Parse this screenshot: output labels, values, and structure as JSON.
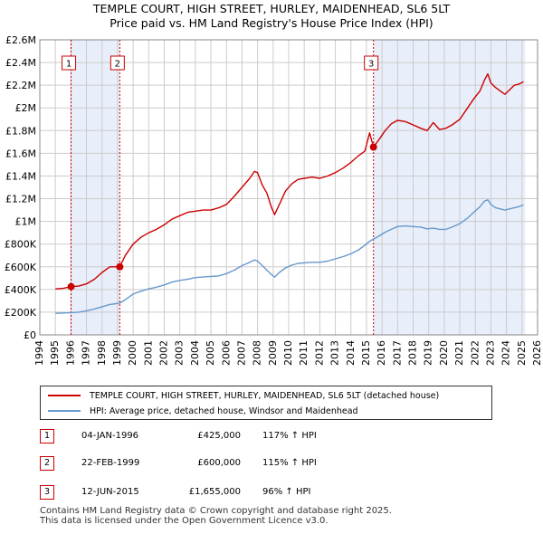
{
  "title_line1": "TEMPLE COURT, HIGH STREET, HURLEY, MAIDENHEAD, SL6 5LT",
  "title_line2": "Price paid vs. HM Land Registry's House Price Index (HPI)",
  "colors": {
    "property": "#cc0000",
    "hpi": "#6699cc",
    "shade": "#e8eefa",
    "grid": "#cccccc",
    "vline": "#cc0000"
  },
  "legend": {
    "property_label": "TEMPLE COURT, HIGH STREET, HURLEY, MAIDENHEAD, SL6 5LT (detached house)",
    "hpi_label": "HPI: Average price, detached house, Windsor and Maidenhead"
  },
  "sales": [
    {
      "num": "1",
      "date": "04-JAN-1996",
      "price": "£425,000",
      "hpi": "117% ↑ HPI"
    },
    {
      "num": "2",
      "date": "22-FEB-1999",
      "price": "£600,000",
      "hpi": "115% ↑ HPI"
    },
    {
      "num": "3",
      "date": "12-JUN-2015",
      "price": "£1,655,000",
      "hpi": "96% ↑ HPI"
    }
  ],
  "footer_line1": "Contains HM Land Registry data © Crown copyright and database right 2025.",
  "footer_line2": "This data is licensed under the Open Government Licence v3.0.",
  "chart_data": {
    "type": "line",
    "title": "TEMPLE COURT, HIGH STREET, HURLEY, MAIDENHEAD, SL6 5LT - Price paid vs. HM Land Registry's House Price Index (HPI)",
    "xlabel": "",
    "ylabel": "",
    "xlim": [
      1994,
      2026
    ],
    "ylim": [
      0,
      2600000
    ],
    "x_ticks": [
      1994,
      1995,
      1996,
      1997,
      1998,
      1999,
      2000,
      2001,
      2002,
      2003,
      2004,
      2005,
      2006,
      2007,
      2008,
      2009,
      2010,
      2011,
      2012,
      2013,
      2014,
      2015,
      2016,
      2017,
      2018,
      2019,
      2020,
      2021,
      2022,
      2023,
      2024,
      2025,
      2026
    ],
    "y_ticks": [
      {
        "value": 0,
        "label": "£0"
      },
      {
        "value": 200000,
        "label": "£200K"
      },
      {
        "value": 400000,
        "label": "£400K"
      },
      {
        "value": 600000,
        "label": "£600K"
      },
      {
        "value": 800000,
        "label": "£800K"
      },
      {
        "value": 1000000,
        "label": "£1M"
      },
      {
        "value": 1200000,
        "label": "£1.2M"
      },
      {
        "value": 1400000,
        "label": "£1.4M"
      },
      {
        "value": 1600000,
        "label": "£1.6M"
      },
      {
        "value": 1800000,
        "label": "£1.8M"
      },
      {
        "value": 2000000,
        "label": "£2M"
      },
      {
        "value": 2200000,
        "label": "£2.2M"
      },
      {
        "value": 2400000,
        "label": "£2.4M"
      },
      {
        "value": 2600000,
        "label": "£2.6M"
      }
    ],
    "shaded_ranges": [
      [
        1996.01,
        1999.14
      ],
      [
        2015.45,
        2025.2
      ]
    ],
    "sale_markers": [
      {
        "label": "1",
        "x": 1996.01,
        "y": 425000
      },
      {
        "label": "2",
        "x": 1999.14,
        "y": 600000
      },
      {
        "label": "3",
        "x": 2015.45,
        "y": 1655000
      }
    ],
    "series": [
      {
        "name": "TEMPLE COURT, HIGH STREET, HURLEY, MAIDENHEAD, SL6 5LT (detached house)",
        "x": [
          1995.0,
          1995.5,
          1996.01,
          1996.5,
          1997.0,
          1997.5,
          1998.0,
          1998.5,
          1999.14,
          1999.5,
          2000.0,
          2000.5,
          2001.0,
          2001.5,
          2002.0,
          2002.5,
          2003.0,
          2003.5,
          2004.0,
          2004.5,
          2005.0,
          2005.5,
          2006.0,
          2006.5,
          2007.0,
          2007.5,
          2007.8,
          2008.0,
          2008.3,
          2008.6,
          2008.9,
          2009.1,
          2009.4,
          2009.8,
          2010.2,
          2010.6,
          2011.0,
          2011.5,
          2012.0,
          2012.5,
          2013.0,
          2013.5,
          2014.0,
          2014.5,
          2014.9,
          2015.2,
          2015.45,
          2015.8,
          2016.2,
          2016.6,
          2017.0,
          2017.5,
          2018.0,
          2018.5,
          2018.9,
          2019.3,
          2019.7,
          2020.1,
          2020.5,
          2021.0,
          2021.5,
          2021.9,
          2022.3,
          2022.6,
          2022.8,
          2023.0,
          2023.3,
          2023.6,
          2023.9,
          2024.2,
          2024.5,
          2024.8,
          2025.1
        ],
        "values": [
          405000,
          410000,
          425000,
          430000,
          450000,
          490000,
          550000,
          600000,
          600000,
          700000,
          800000,
          860000,
          900000,
          930000,
          970000,
          1020000,
          1050000,
          1080000,
          1090000,
          1100000,
          1100000,
          1120000,
          1150000,
          1220000,
          1300000,
          1380000,
          1440000,
          1430000,
          1320000,
          1250000,
          1120000,
          1060000,
          1150000,
          1270000,
          1330000,
          1370000,
          1380000,
          1390000,
          1380000,
          1400000,
          1430000,
          1470000,
          1520000,
          1580000,
          1620000,
          1780000,
          1655000,
          1720000,
          1800000,
          1860000,
          1890000,
          1880000,
          1850000,
          1820000,
          1800000,
          1870000,
          1810000,
          1820000,
          1850000,
          1900000,
          2000000,
          2080000,
          2150000,
          2250000,
          2300000,
          2220000,
          2180000,
          2150000,
          2120000,
          2160000,
          2200000,
          2210000,
          2230000
        ]
      },
      {
        "name": "HPI: Average price, detached house, Windsor and Maidenhead",
        "x": [
          1995.0,
          1995.5,
          1996.01,
          1996.5,
          1997.0,
          1997.5,
          1998.0,
          1998.5,
          1999.14,
          1999.5,
          2000.0,
          2000.5,
          2001.0,
          2001.5,
          2002.0,
          2002.5,
          2003.0,
          2003.5,
          2004.0,
          2004.5,
          2005.0,
          2005.5,
          2006.0,
          2006.5,
          2007.0,
          2007.5,
          2007.8,
          2008.0,
          2008.3,
          2008.6,
          2008.9,
          2009.1,
          2009.4,
          2009.8,
          2010.2,
          2010.6,
          2011.0,
          2011.5,
          2012.0,
          2012.5,
          2013.0,
          2013.5,
          2014.0,
          2014.5,
          2014.9,
          2015.2,
          2015.45,
          2015.8,
          2016.2,
          2016.6,
          2017.0,
          2017.5,
          2018.0,
          2018.5,
          2018.9,
          2019.3,
          2019.7,
          2020.1,
          2020.5,
          2021.0,
          2021.5,
          2021.9,
          2022.3,
          2022.6,
          2022.8,
          2023.0,
          2023.3,
          2023.6,
          2023.9,
          2024.2,
          2024.5,
          2024.8,
          2025.1
        ],
        "values": [
          190000,
          193000,
          196000,
          200000,
          212000,
          228000,
          248000,
          268000,
          280000,
          310000,
          360000,
          385000,
          405000,
          420000,
          440000,
          465000,
          480000,
          490000,
          505000,
          510000,
          515000,
          520000,
          540000,
          570000,
          610000,
          640000,
          660000,
          650000,
          610000,
          570000,
          530000,
          510000,
          550000,
          590000,
          615000,
          630000,
          635000,
          640000,
          640000,
          650000,
          670000,
          690000,
          715000,
          750000,
          790000,
          825000,
          845000,
          870000,
          905000,
          930000,
          955000,
          960000,
          955000,
          950000,
          935000,
          940000,
          930000,
          930000,
          950000,
          980000,
          1030000,
          1080000,
          1130000,
          1180000,
          1190000,
          1150000,
          1120000,
          1110000,
          1100000,
          1110000,
          1120000,
          1130000,
          1145000
        ]
      }
    ]
  }
}
